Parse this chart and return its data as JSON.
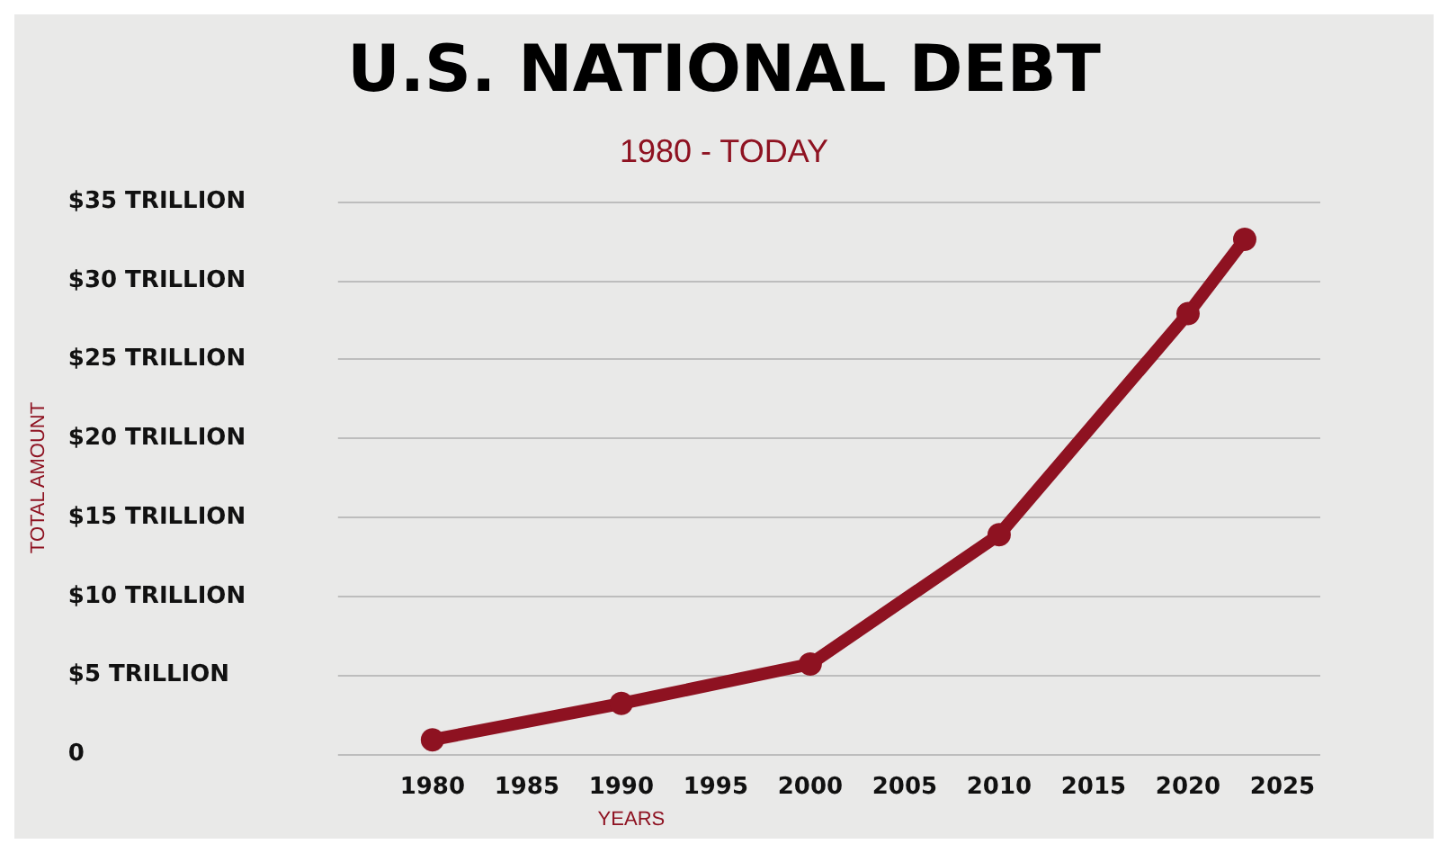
{
  "chart_data": {
    "type": "line",
    "title": "U.S. NATIONAL DEBT",
    "subtitle": "1980 - TODAY",
    "xlabel": "YEARS",
    "ylabel": "TOTAL AMOUNT",
    "x": [
      1980,
      1990,
      2000,
      2010,
      2020,
      2023
    ],
    "series": [
      {
        "color": "#8e1221",
        "values": [
          0.9,
          3.2,
          5.7,
          13.9,
          27.9,
          32.6
        ]
      }
    ],
    "xlim": [
      1975,
      2027
    ],
    "xticks": [
      1980,
      1985,
      1990,
      1995,
      2000,
      2005,
      2010,
      2015,
      2020,
      2025
    ],
    "ylim": [
      0,
      35
    ],
    "yticks": [
      {
        "value": 0,
        "label": "0"
      },
      {
        "value": 5,
        "label": "$5 TRILLION"
      },
      {
        "value": 10,
        "label": "$10 TRILLION"
      },
      {
        "value": 15,
        "label": "$15 TRILLION"
      },
      {
        "value": 20,
        "label": "$20 TRILLION"
      },
      {
        "value": 25,
        "label": "$25 TRILLION"
      },
      {
        "value": 30,
        "label": "$30 TRILLION"
      },
      {
        "value": 35,
        "label": "$35 TRILLION"
      }
    ],
    "grid": "y",
    "marker": "circle",
    "line_style": "solid"
  }
}
